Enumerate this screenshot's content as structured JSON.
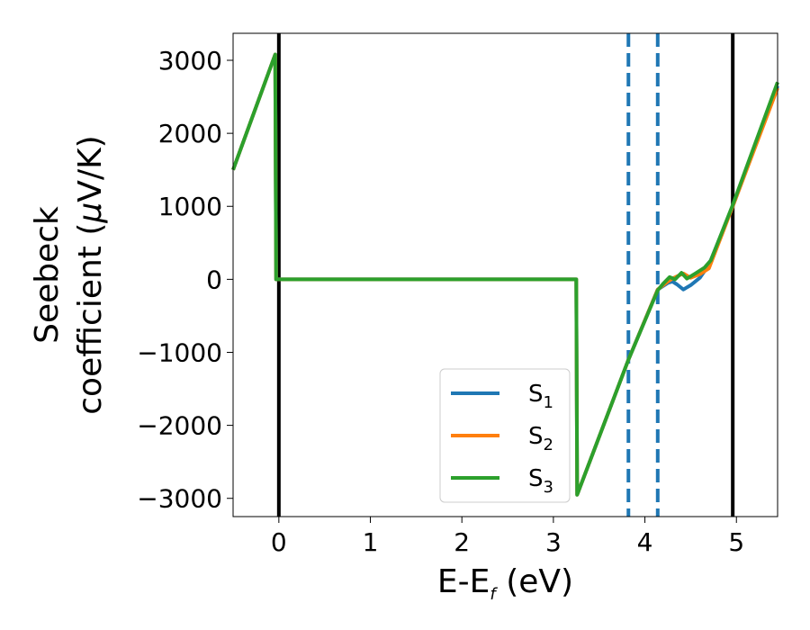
{
  "chart_data": {
    "type": "line",
    "xlabel": {
      "main": "E-E",
      "sub": "f",
      "tail": " (eV)"
    },
    "ylabel": {
      "line1": "Seebeck",
      "line2_pre": "coefficient  (",
      "mu": "μ",
      "line2_post": "V/K)"
    },
    "xlim": [
      -0.5,
      5.45
    ],
    "ylim": [
      -3250,
      3370
    ],
    "xticks": [
      0,
      1,
      2,
      3,
      4,
      5
    ],
    "xtick_labels": [
      "0",
      "1",
      "2",
      "3",
      "4",
      "5"
    ],
    "yticks": [
      3000,
      2000,
      1000,
      0,
      -1000,
      -2000,
      -3000
    ],
    "ytick_labels": [
      "3000",
      "2000",
      "1000",
      "0",
      "−1000",
      "−2000",
      "−3000"
    ],
    "grid": false,
    "legend_position": "bottom-center",
    "vlines": [
      {
        "x": 0.0,
        "style": "solid",
        "color": "#000000"
      },
      {
        "x": 4.96,
        "style": "solid",
        "color": "#000000"
      },
      {
        "x": 3.82,
        "style": "dashed",
        "color": "#1f77b4"
      },
      {
        "x": 4.14,
        "style": "dashed",
        "color": "#1f77b4"
      }
    ],
    "series": [
      {
        "name": "S",
        "sub": "1",
        "color": "#1f77b4",
        "points": [
          [
            -0.5,
            1500
          ],
          [
            -0.04,
            3080
          ],
          [
            -0.03,
            0
          ],
          [
            3.25,
            0
          ],
          [
            3.26,
            -2950
          ],
          [
            3.82,
            -1100
          ],
          [
            4.14,
            -140
          ],
          [
            4.25,
            -50
          ],
          [
            4.3,
            -30
          ],
          [
            4.35,
            -70
          ],
          [
            4.42,
            -140
          ],
          [
            4.5,
            -80
          ],
          [
            4.6,
            20
          ],
          [
            4.7,
            200
          ],
          [
            4.96,
            1000
          ],
          [
            5.45,
            2650
          ]
        ]
      },
      {
        "name": "S",
        "sub": "2",
        "color": "#ff7f0e",
        "points": [
          [
            -0.5,
            1500
          ],
          [
            -0.04,
            3080
          ],
          [
            -0.03,
            0
          ],
          [
            3.25,
            0
          ],
          [
            3.26,
            -2950
          ],
          [
            3.82,
            -1100
          ],
          [
            4.14,
            -140
          ],
          [
            4.25,
            -30
          ],
          [
            4.3,
            10
          ],
          [
            4.35,
            40
          ],
          [
            4.42,
            80
          ],
          [
            4.5,
            20
          ],
          [
            4.6,
            70
          ],
          [
            4.7,
            150
          ],
          [
            4.96,
            1000
          ],
          [
            5.45,
            2620
          ]
        ]
      },
      {
        "name": "S",
        "sub": "3",
        "color": "#2ca02c",
        "points": [
          [
            -0.5,
            1500
          ],
          [
            -0.04,
            3080
          ],
          [
            -0.03,
            0
          ],
          [
            3.25,
            0
          ],
          [
            3.26,
            -2950
          ],
          [
            3.82,
            -1100
          ],
          [
            4.14,
            -150
          ],
          [
            4.2,
            -60
          ],
          [
            4.27,
            30
          ],
          [
            4.33,
            0
          ],
          [
            4.4,
            90
          ],
          [
            4.46,
            10
          ],
          [
            4.55,
            80
          ],
          [
            4.65,
            160
          ],
          [
            4.72,
            260
          ],
          [
            4.96,
            1020
          ],
          [
            5.45,
            2700
          ]
        ]
      }
    ]
  }
}
